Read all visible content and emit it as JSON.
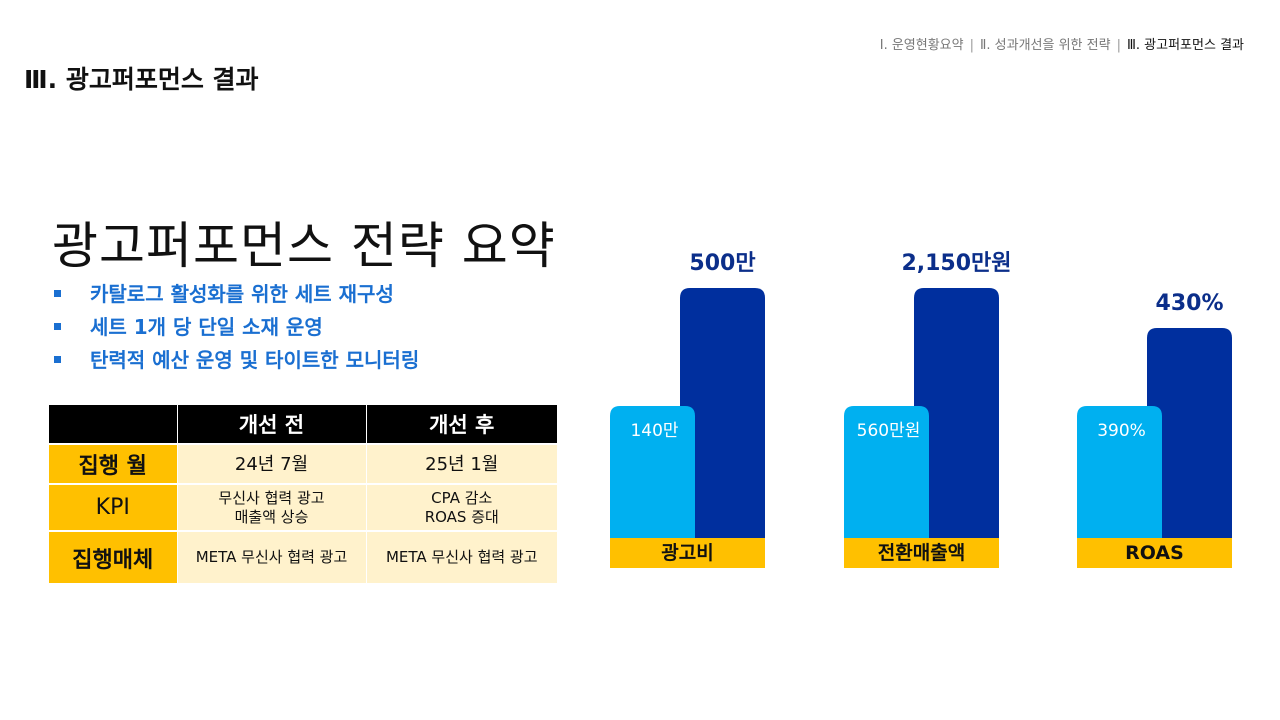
{
  "breadcrumb": {
    "items": [
      "Ⅰ. 운영현황요약",
      "Ⅱ. 성과개선을 위한 전략",
      "Ⅲ. 광고퍼포먼스 결과"
    ],
    "separator": "|"
  },
  "section_title": "Ⅲ. 광고퍼포먼스 결과",
  "strategy": {
    "title": "광고퍼포먼스 전략 요약",
    "bullets": [
      "카탈로그 활성화를 위한 세트 재구성",
      "세트 1개 당 단일 소재 운영",
      "탄력적 예산 운영 및 타이트한 모니터링"
    ]
  },
  "table": {
    "headers": [
      "",
      "개선 전",
      "개선 후"
    ],
    "rows": [
      {
        "label": "집행 월",
        "before": [
          "24년 7월"
        ],
        "after": [
          "25년 1월"
        ]
      },
      {
        "label": "KPI",
        "before": [
          "무신사 협력 광고",
          "매출액 상승"
        ],
        "after": [
          "CPA 감소",
          "ROAS 증대"
        ]
      },
      {
        "label": "집행매체",
        "before": [
          "META 무신사 협력 광고"
        ],
        "after": [
          "META 무신사 협력 광고"
        ]
      }
    ]
  },
  "colors": {
    "before_bar": "#00b0f0",
    "after_bar": "#002f9e",
    "category_band": "#ffc000",
    "after_label": "#0b2e8a",
    "bullet": "#1a6fd1"
  },
  "chart_data": {
    "type": "bar",
    "categories": [
      "광고비",
      "전환매출액",
      "ROAS"
    ],
    "series": [
      {
        "values": [
          140,
          560,
          390
        ],
        "labels": [
          "140만",
          "560만원",
          "390%"
        ]
      },
      {
        "values": [
          500,
          2150,
          430
        ],
        "labels": [
          "500만",
          "2,150만원",
          "430%"
        ]
      }
    ],
    "title": "",
    "xlabel": "",
    "ylabel": "",
    "grid": false,
    "legend": "none"
  }
}
